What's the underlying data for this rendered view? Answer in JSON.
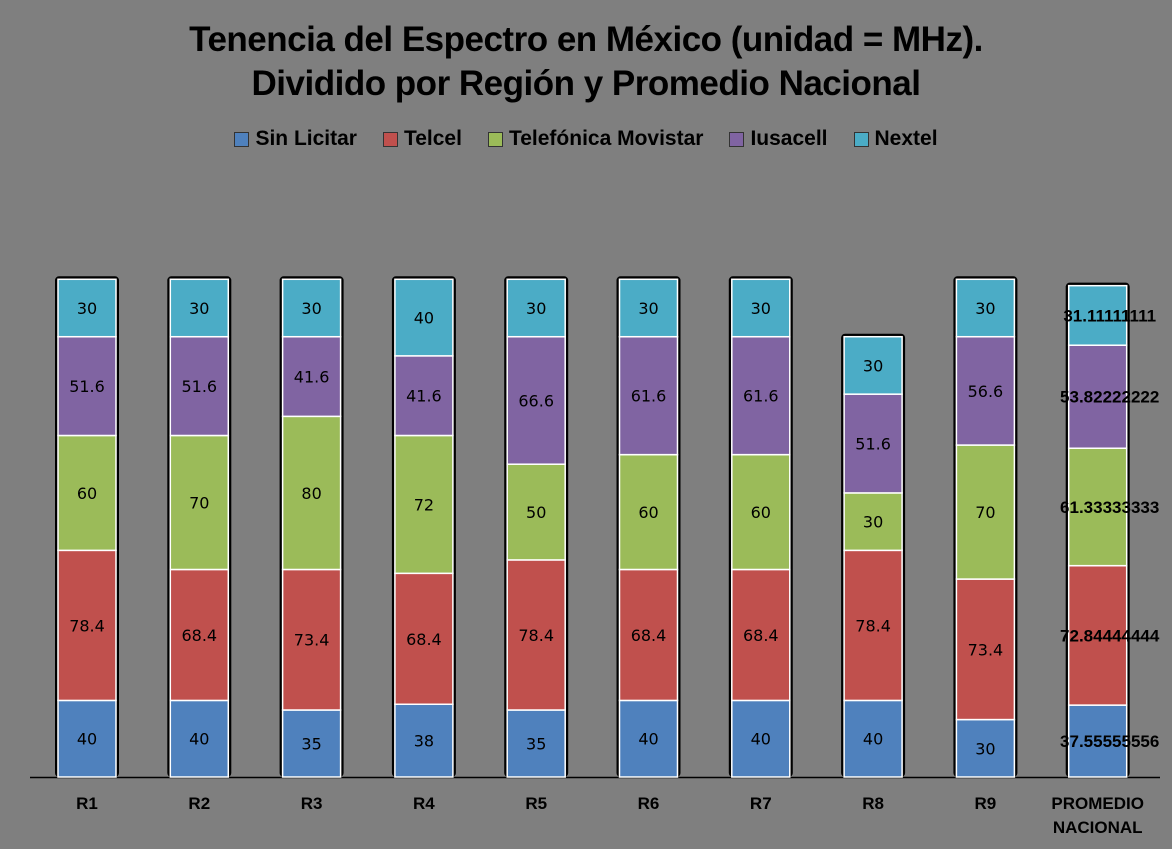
{
  "title_line1": "Tenencia del Espectro en México (unidad = MHz).",
  "title_line2": "Dividido por Región y Promedio Nacional",
  "colors": {
    "sin_licitar": "#4f81bd",
    "telcel": "#c0504d",
    "movistar": "#9bbb59",
    "iusacell": "#8064a2",
    "nextel": "#4bacc6"
  },
  "chart_data": {
    "type": "bar",
    "stacked": true,
    "title": "Tenencia del Espectro en México (unidad = MHz). Dividido por Región y Promedio Nacional",
    "categories": [
      "R1",
      "R2",
      "R3",
      "R4",
      "R5",
      "R6",
      "R7",
      "R8",
      "R9",
      "PROMEDIO NACIONAL"
    ],
    "category_lines": [
      [
        "R1"
      ],
      [
        "R2"
      ],
      [
        "R3"
      ],
      [
        "R4"
      ],
      [
        "R5"
      ],
      [
        "R6"
      ],
      [
        "R7"
      ],
      [
        "R8"
      ],
      [
        "R9"
      ],
      [
        "PROMEDIO",
        "NACIONAL"
      ]
    ],
    "legend_position": "top",
    "grid": false,
    "ylim": [
      0,
      290
    ],
    "series": [
      {
        "name": "Sin Licitar",
        "color": "#4f81bd",
        "values": [
          40,
          40,
          35,
          38,
          35,
          40,
          40,
          40,
          30,
          37.55555556
        ],
        "labels": [
          "40",
          "40",
          "35",
          "38",
          "35",
          "40",
          "40",
          "40",
          "30",
          "37.55555556"
        ]
      },
      {
        "name": "Telcel",
        "color": "#c0504d",
        "values": [
          78.4,
          68.4,
          73.4,
          68.4,
          78.4,
          68.4,
          68.4,
          78.4,
          73.4,
          72.84444444
        ],
        "labels": [
          "78.4",
          "68.4",
          "73.4",
          "68.4",
          "78.4",
          "68.4",
          "68.4",
          "78.4",
          "73.4",
          "72.84444444"
        ]
      },
      {
        "name": "Telefónica Movistar",
        "color": "#9bbb59",
        "values": [
          60,
          70,
          80,
          72,
          50,
          60,
          60,
          30,
          70,
          61.33333333
        ],
        "labels": [
          "60",
          "70",
          "80",
          "72",
          "50",
          "60",
          "60",
          "30",
          "70",
          "61.33333333"
        ]
      },
      {
        "name": "Iusacell",
        "color": "#8064a2",
        "values": [
          51.6,
          51.6,
          41.6,
          41.6,
          66.6,
          61.6,
          61.6,
          51.6,
          56.6,
          53.82222222
        ],
        "labels": [
          "51.6",
          "51.6",
          "41.6",
          "41.6",
          "66.6",
          "61.6",
          "61.6",
          "51.6",
          "56.6",
          "53.82222222"
        ]
      },
      {
        "name": "Nextel",
        "color": "#4bacc6",
        "values": [
          30,
          30,
          30,
          40,
          30,
          30,
          30,
          30,
          30,
          31.11111111
        ],
        "labels": [
          "30",
          "30",
          "30",
          "40",
          "30",
          "30",
          "30",
          "30",
          "30",
          "31.11111111"
        ]
      }
    ]
  }
}
